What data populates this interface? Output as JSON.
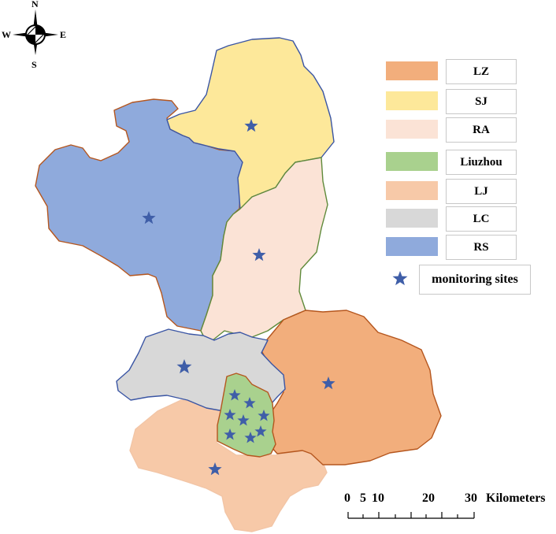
{
  "compass": {
    "north": "N",
    "south": "S",
    "east": "E",
    "west": "W"
  },
  "legend": {
    "items": [
      {
        "label": "LZ",
        "color": "#f2ae7c"
      },
      {
        "label": "SJ",
        "color": "#fde89a"
      },
      {
        "label": "RA",
        "color": "#fbe3d6"
      },
      {
        "label": "Liuzhou",
        "color": "#a9d18e"
      },
      {
        "label": "LJ",
        "color": "#f7c9a8"
      },
      {
        "label": "LC",
        "color": "#d8d8d8"
      },
      {
        "label": "RS",
        "color": "#8faadc"
      }
    ],
    "sites_label": "monitoring sites"
  },
  "regions": {
    "LZ": {
      "fill": "#f2ae7c",
      "stroke": "#b5561e"
    },
    "SJ": {
      "fill": "#fde89a",
      "stroke": "#3a55a4"
    },
    "RA": {
      "fill": "#fbe3d6",
      "stroke": "#5f8a3a"
    },
    "Liuzhou": {
      "fill": "#a9d18e",
      "stroke": "#b5561e"
    },
    "LJ": {
      "fill": "#f7c9a8",
      "stroke": "#f2c5a6"
    },
    "LC": {
      "fill": "#d8d8d8",
      "stroke": "#3a55a4"
    },
    "RS": {
      "fill": "#8faadc",
      "stroke": "#b5561e"
    }
  },
  "site_color": "#3f5ea8",
  "scale_bar": {
    "ticks": [
      "0",
      "5",
      "10",
      "20",
      "30"
    ],
    "unit": "Kilometers"
  }
}
